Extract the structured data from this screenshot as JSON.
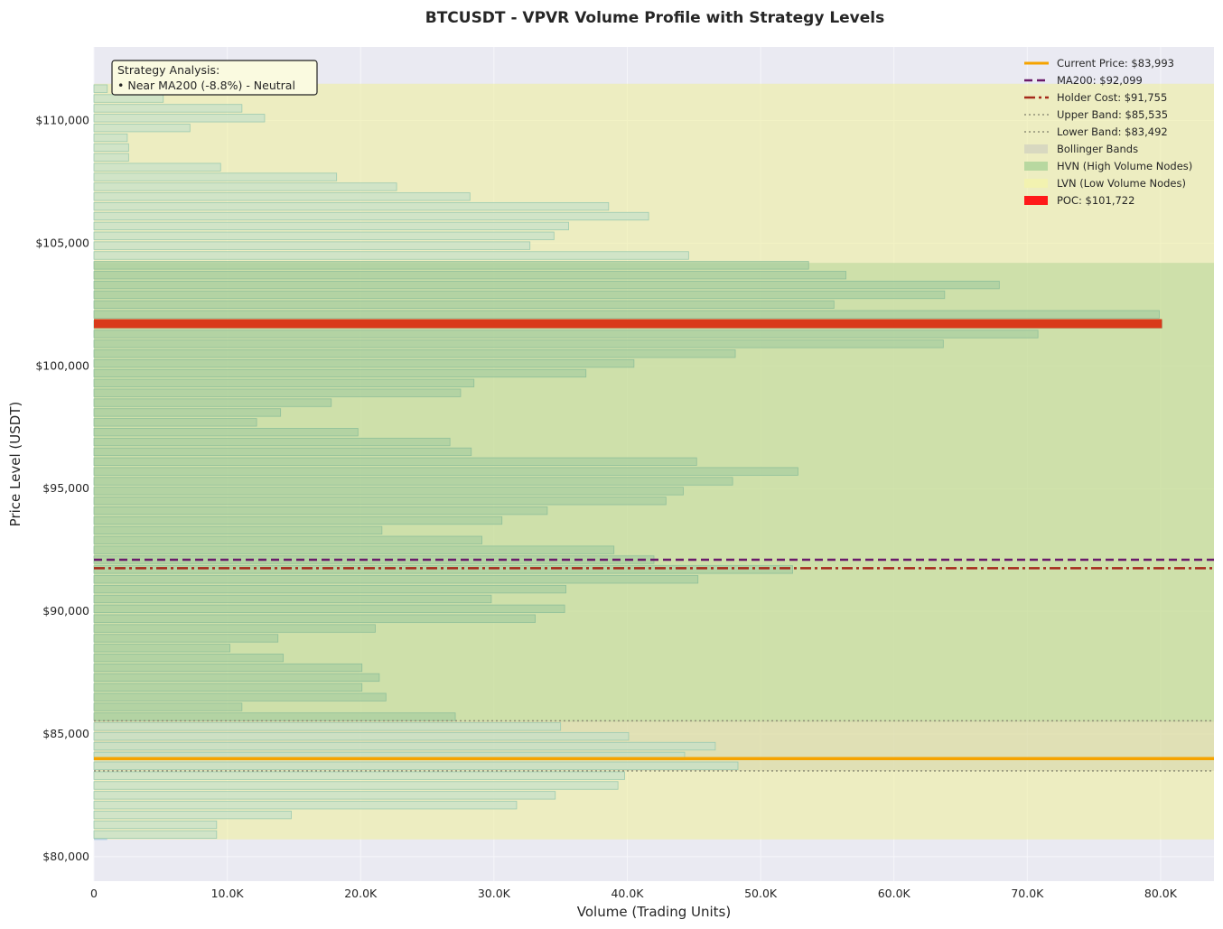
{
  "chart_data": {
    "type": "bar",
    "orientation": "horizontal",
    "title": "BTCUSDT - VPVR Volume Profile with Strategy Levels",
    "xlabel": "Volume (Trading Units)",
    "ylabel": "Price Level (USDT)",
    "xlim": [
      0,
      84000
    ],
    "ylim": [
      79000,
      113000
    ],
    "x_ticks": [
      {
        "value": 0,
        "label": "0"
      },
      {
        "value": 10000,
        "label": "10.0K"
      },
      {
        "value": 20000,
        "label": "20.0K"
      },
      {
        "value": 30000,
        "label": "30.0K"
      },
      {
        "value": 40000,
        "label": "40.0K"
      },
      {
        "value": 50000,
        "label": "50.0K"
      },
      {
        "value": 60000,
        "label": "60.0K"
      },
      {
        "value": 70000,
        "label": "70.0K"
      },
      {
        "value": 80000,
        "label": "80.0K"
      }
    ],
    "y_ticks": [
      {
        "value": 80000,
        "label": "$80,000"
      },
      {
        "value": 85000,
        "label": "$85,000"
      },
      {
        "value": 90000,
        "label": "$90,000"
      },
      {
        "value": 95000,
        "label": "$95,000"
      },
      {
        "value": 100000,
        "label": "$100,000"
      },
      {
        "value": 105000,
        "label": "$105,000"
      },
      {
        "value": 110000,
        "label": "$110,000"
      }
    ],
    "grid": true,
    "legend_position": "top-right",
    "bin_size": 400,
    "price_min": 80700,
    "bins": [
      {
        "price": 80900,
        "volume": 9200
      },
      {
        "price": 81300,
        "volume": 9200
      },
      {
        "price": 81700,
        "volume": 14800
      },
      {
        "price": 82100,
        "volume": 31700
      },
      {
        "price": 82500,
        "volume": 34600
      },
      {
        "price": 82900,
        "volume": 39300
      },
      {
        "price": 83300,
        "volume": 39800
      },
      {
        "price": 83700,
        "volume": 48300
      },
      {
        "price": 84100,
        "volume": 44300
      },
      {
        "price": 84500,
        "volume": 46600
      },
      {
        "price": 84900,
        "volume": 40100
      },
      {
        "price": 85300,
        "volume": 35000
      },
      {
        "price": 85700,
        "volume": 27100
      },
      {
        "price": 86100,
        "volume": 11100
      },
      {
        "price": 86500,
        "volume": 21900
      },
      {
        "price": 86900,
        "volume": 20100
      },
      {
        "price": 87300,
        "volume": 21400
      },
      {
        "price": 87700,
        "volume": 20100
      },
      {
        "price": 88100,
        "volume": 14200
      },
      {
        "price": 88500,
        "volume": 10200
      },
      {
        "price": 88900,
        "volume": 13800
      },
      {
        "price": 89300,
        "volume": 21100
      },
      {
        "price": 89700,
        "volume": 33100
      },
      {
        "price": 90100,
        "volume": 35300
      },
      {
        "price": 90500,
        "volume": 29800
      },
      {
        "price": 90900,
        "volume": 35400
      },
      {
        "price": 91300,
        "volume": 45300
      },
      {
        "price": 91700,
        "volume": 52400
      },
      {
        "price": 92100,
        "volume": 42000
      },
      {
        "price": 92500,
        "volume": 39000
      },
      {
        "price": 92900,
        "volume": 29100
      },
      {
        "price": 93300,
        "volume": 21600
      },
      {
        "price": 93700,
        "volume": 30600
      },
      {
        "price": 94100,
        "volume": 34000
      },
      {
        "price": 94500,
        "volume": 42900
      },
      {
        "price": 94900,
        "volume": 44200
      },
      {
        "price": 95300,
        "volume": 47900
      },
      {
        "price": 95700,
        "volume": 52800
      },
      {
        "price": 96100,
        "volume": 45200
      },
      {
        "price": 96500,
        "volume": 28300
      },
      {
        "price": 96900,
        "volume": 26700
      },
      {
        "price": 97300,
        "volume": 19800
      },
      {
        "price": 97700,
        "volume": 12200
      },
      {
        "price": 98100,
        "volume": 14000
      },
      {
        "price": 98500,
        "volume": 17800
      },
      {
        "price": 98900,
        "volume": 27500
      },
      {
        "price": 99300,
        "volume": 28500
      },
      {
        "price": 99700,
        "volume": 36900
      },
      {
        "price": 100100,
        "volume": 40500
      },
      {
        "price": 100500,
        "volume": 48100
      },
      {
        "price": 100900,
        "volume": 63700
      },
      {
        "price": 101300,
        "volume": 70800
      },
      {
        "price": 101700,
        "volume": 80100
      },
      {
        "price": 102100,
        "volume": 79900
      },
      {
        "price": 102500,
        "volume": 55500
      },
      {
        "price": 102900,
        "volume": 63800
      },
      {
        "price": 103300,
        "volume": 67900
      },
      {
        "price": 103700,
        "volume": 56400
      },
      {
        "price": 104100,
        "volume": 53600
      },
      {
        "price": 104500,
        "volume": 44600
      },
      {
        "price": 104900,
        "volume": 32700
      },
      {
        "price": 105300,
        "volume": 34500
      },
      {
        "price": 105700,
        "volume": 35600
      },
      {
        "price": 106100,
        "volume": 41600
      },
      {
        "price": 106500,
        "volume": 38600
      },
      {
        "price": 106900,
        "volume": 28200
      },
      {
        "price": 107300,
        "volume": 22700
      },
      {
        "price": 107700,
        "volume": 18200
      },
      {
        "price": 108100,
        "volume": 9500
      },
      {
        "price": 108500,
        "volume": 2600
      },
      {
        "price": 108900,
        "volume": 2600
      },
      {
        "price": 109300,
        "volume": 2500
      },
      {
        "price": 109700,
        "volume": 7200
      },
      {
        "price": 110100,
        "volume": 12800
      },
      {
        "price": 110500,
        "volume": 11100
      },
      {
        "price": 110900,
        "volume": 5200
      },
      {
        "price": 111300,
        "volume": 1000
      }
    ],
    "zones": [
      {
        "name": "LVN (Low Volume Nodes)",
        "from": 80700,
        "to": 111500,
        "color": "#eeee99"
      },
      {
        "name": "HVN (High Volume Nodes)",
        "from": 85500,
        "to": 104200,
        "color": "#a8d08d"
      },
      {
        "name": "Bollinger Bands",
        "from": 83492,
        "to": 85535,
        "color": "#c8c8a0"
      }
    ],
    "lines": [
      {
        "name": "Current Price: $83,993",
        "value": 83993,
        "color": "#f5a300",
        "style": "solid",
        "width": 3.5
      },
      {
        "name": "MA200: $92,099",
        "value": 92099,
        "color": "#6a1a6a",
        "style": "dashed",
        "width": 2.5
      },
      {
        "name": "Holder Cost: $91,755",
        "value": 91755,
        "color": "#a52a1a",
        "style": "dashdot",
        "width": 2.5
      },
      {
        "name": "Upper Band: $85,535",
        "value": 85535,
        "color": "#909078",
        "style": "dotted",
        "width": 1.5
      },
      {
        "name": "Lower Band: $83,492",
        "value": 83492,
        "color": "#909078",
        "style": "dotted",
        "width": 1.5
      }
    ],
    "poc": {
      "name": "POC: $101,722",
      "value": 101722,
      "volume": 80100,
      "color": "#d93a1a"
    },
    "legend": [
      {
        "label": "Current Price: $83,993",
        "kind": "line",
        "color": "#f5a300",
        "style": "solid"
      },
      {
        "label": "MA200: $92,099",
        "kind": "line",
        "color": "#6a1a6a",
        "style": "dashed"
      },
      {
        "label": "Holder Cost: $91,755",
        "kind": "line",
        "color": "#a52a1a",
        "style": "dashdot"
      },
      {
        "label": "Upper Band: $85,535",
        "kind": "line",
        "color": "#909078",
        "style": "dotted"
      },
      {
        "label": "Lower Band: $83,492",
        "kind": "line",
        "color": "#909078",
        "style": "dotted"
      },
      {
        "label": "Bollinger Bands",
        "kind": "patch",
        "color": "#d8d8c0"
      },
      {
        "label": "HVN (High Volume Nodes)",
        "kind": "patch",
        "color": "#b8d8a0"
      },
      {
        "label": "LVN (Low Volume Nodes)",
        "kind": "patch",
        "color": "#f2f2b0"
      },
      {
        "label": "POC: $101,722",
        "kind": "patch",
        "color": "#ff1a1a"
      }
    ],
    "annotation": {
      "line1": "Strategy Analysis:",
      "line2": "• Near MA200 (-8.8%) - Neutral"
    }
  }
}
